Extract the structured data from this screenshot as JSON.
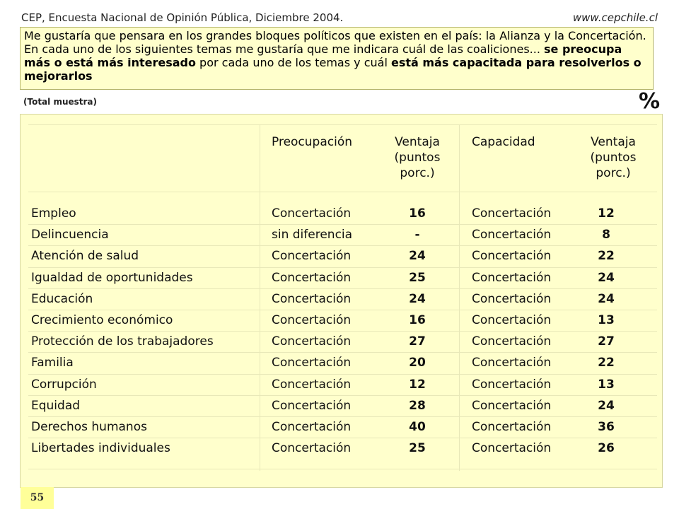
{
  "header": {
    "source": "CEP, Encuesta Nacional de Opinión Pública, Diciembre 2004.",
    "website": "www.cepchile.cl"
  },
  "question": {
    "part1": "Me gustaría que pensara en los grandes bloques políticos que existen en el país: la Alianza y la Concertación. En cada uno de los siguientes temas me gustaría que me indicara cuál de las coaliciones... ",
    "bold1": "se preocupa más o está más interesado",
    "part2": " por cada uno de los temas y cuál ",
    "bold2": "está más capacitada para resolverlos o mejorarlos"
  },
  "sample_note": "(Total muestra)",
  "unit_symbol": "%",
  "columns": {
    "preocupacion": "Preocupación",
    "ventaja1_l1": "Ventaja",
    "ventaja1_l2": "(puntos",
    "ventaja1_l3": "porc.)",
    "capacidad": "Capacidad",
    "ventaja2_l1": "Ventaja",
    "ventaja2_l2": "(puntos",
    "ventaja2_l3": "porc.)"
  },
  "rows": [
    {
      "tema": "Empleo",
      "preocupacion": "Concertación",
      "ventaja1": "16",
      "capacidad": "Concertación",
      "ventaja2": "12"
    },
    {
      "tema": "Delincuencia",
      "preocupacion": "sin diferencia",
      "ventaja1": "-",
      "capacidad": "Concertación",
      "ventaja2": "8"
    },
    {
      "tema": "Atención de salud",
      "preocupacion": "Concertación",
      "ventaja1": "24",
      "capacidad": "Concertación",
      "ventaja2": "22"
    },
    {
      "tema": "Igualdad de oportunidades",
      "preocupacion": "Concertación",
      "ventaja1": "25",
      "capacidad": "Concertación",
      "ventaja2": "24"
    },
    {
      "tema": "Educación",
      "preocupacion": "Concertación",
      "ventaja1": "24",
      "capacidad": "Concertación",
      "ventaja2": "24"
    },
    {
      "tema": "Crecimiento económico",
      "preocupacion": "Concertación",
      "ventaja1": "16",
      "capacidad": "Concertación",
      "ventaja2": "13"
    },
    {
      "tema": "Protección de los trabajadores",
      "preocupacion": "Concertación",
      "ventaja1": "27",
      "capacidad": "Concertación",
      "ventaja2": "27"
    },
    {
      "tema": "Familia",
      "preocupacion": "Concertación",
      "ventaja1": "20",
      "capacidad": "Concertación",
      "ventaja2": "22"
    },
    {
      "tema": "Corrupción",
      "preocupacion": "Concertación",
      "ventaja1": "12",
      "capacidad": "Concertación",
      "ventaja2": "13"
    },
    {
      "tema": "Equidad",
      "preocupacion": "Concertación",
      "ventaja1": "28",
      "capacidad": "Concertación",
      "ventaja2": "24"
    },
    {
      "tema": "Derechos humanos",
      "preocupacion": "Concertación",
      "ventaja1": "40",
      "capacidad": "Concertación",
      "ventaja2": "36"
    },
    {
      "tema": "Libertades individuales",
      "preocupacion": "Concertación",
      "ventaja1": "25",
      "capacidad": "Concertación",
      "ventaja2": "26"
    }
  ],
  "page_number": "55"
}
